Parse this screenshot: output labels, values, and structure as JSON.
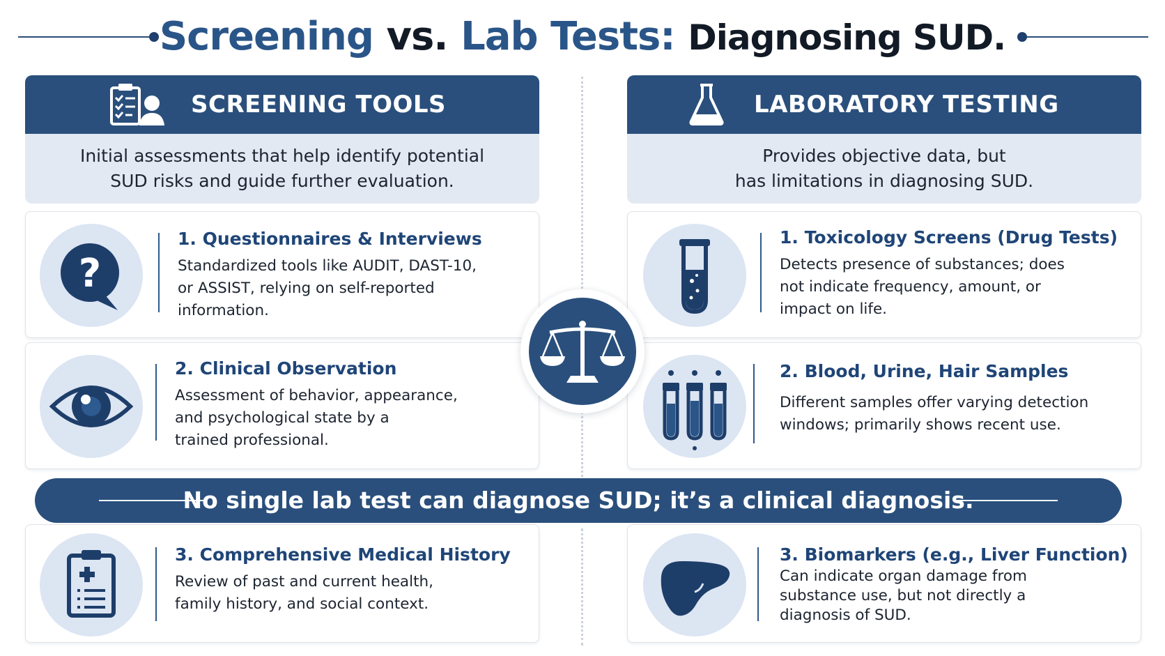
{
  "title": {
    "part1": "Screening",
    "part2": "vs.",
    "part3": "Lab Tests:",
    "part4": "Diagnosing SUD."
  },
  "left_panel": {
    "header": "SCREENING TOOLS",
    "icon": "clipboard-person-icon",
    "subtitle_line1": "Initial assessments that help identify potential",
    "subtitle_line2": "SUD risks and guide further evaluation.",
    "cards": [
      {
        "icon": "question-bubble-icon",
        "title": "1. Questionnaires & Interviews",
        "body_lines": [
          "Standardized tools like AUDIT, DAST-10,",
          "or ASSIST, relying on self-reported",
          "information."
        ]
      },
      {
        "icon": "eye-icon",
        "title": "2. Clinical Observation",
        "body_lines": [
          "Assessment of behavior, appearance,",
          "and psychological state by a",
          "trained professional."
        ]
      },
      {
        "icon": "medical-clipboard-icon",
        "title": "3. Comprehensive Medical History",
        "body_lines": [
          "Review of past and current health,",
          "family history, and social context."
        ]
      }
    ]
  },
  "right_panel": {
    "header": "LABORATORY TESTING",
    "icon": "flask-icon",
    "subtitle_line1": "Provides objective data, but",
    "subtitle_line2": "has limitations in diagnosing SUD.",
    "cards": [
      {
        "icon": "test-tube-icon",
        "title": "1. Toxicology Screens (Drug Tests)",
        "body_lines": [
          "Detects presence of substances; does",
          "not indicate frequency, amount, or",
          "impact on life."
        ]
      },
      {
        "icon": "sample-tubes-icon",
        "title": "2. Blood, Urine, Hair Samples",
        "body_lines": [
          "Different samples offer varying detection",
          "windows; primarily shows recent use."
        ]
      },
      {
        "icon": "liver-icon",
        "title": "3. Biomarkers (e.g., Liver Function)",
        "body_lines": [
          "Can indicate organ damage from",
          "substance use, but not directly a",
          "diagnosis of SUD."
        ]
      }
    ]
  },
  "center_icon": "balance-scale-icon",
  "banner_text": "No single lab test can diagnose SUD; it’s a clinical diagnosis.",
  "colors": {
    "navy": "#2a4f7c",
    "title_blue": "#2a5588",
    "light_panel": "#e3e9f3",
    "icon_circle": "#dce5f2"
  }
}
